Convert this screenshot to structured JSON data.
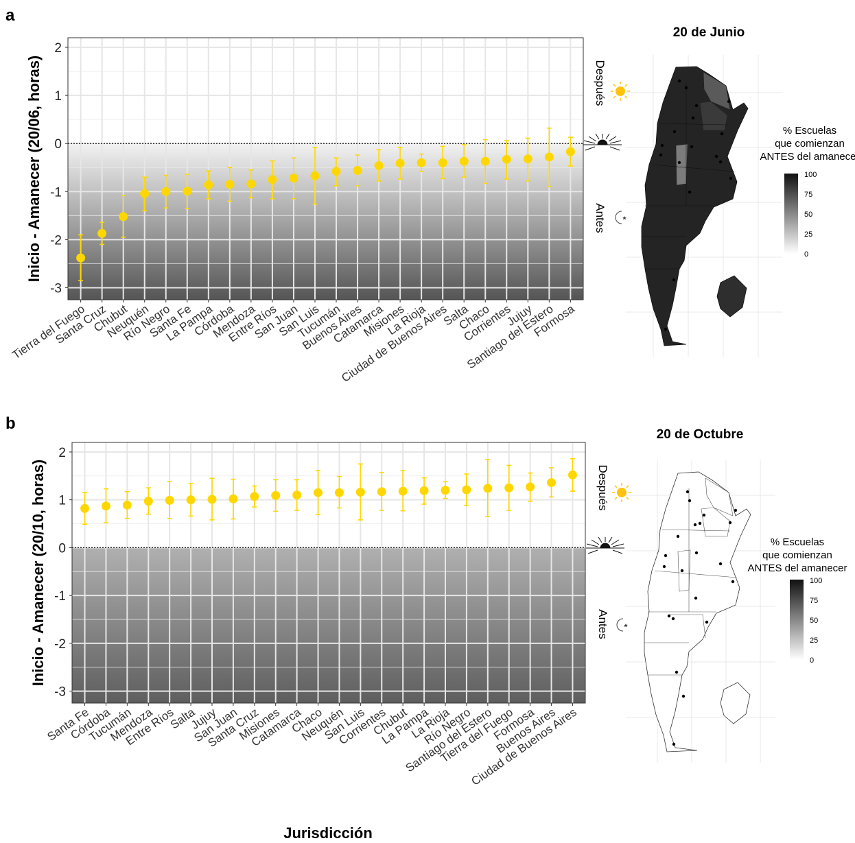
{
  "figure": {
    "xlabel": "Jurisdicción"
  },
  "panels": [
    {
      "letter": "a",
      "map_title": "20 de Junio",
      "legend_title": [
        "% Escuelas",
        "que comienzan",
        "ANTES del amanecer"
      ],
      "legend_ticks": [
        "100",
        "75",
        "50",
        "25",
        "0"
      ],
      "side_after": "Después",
      "side_before": "Antes"
    },
    {
      "letter": "b",
      "map_title": "20 de Octubre",
      "legend_title": [
        "% Escuelas",
        "que comienzan",
        "ANTES del amanecer"
      ],
      "legend_ticks": [
        "100",
        "75",
        "50",
        "25",
        "0"
      ],
      "side_after": "Después",
      "side_before": "Antes"
    }
  ],
  "chart_data": [
    {
      "type": "scatter",
      "title": "",
      "xlabel": "",
      "ylabel": "Inicio - Amanecer (20/06, horas)",
      "ylim": [
        -3.25,
        2.2
      ],
      "yticks": [
        -3,
        -2,
        -1,
        0,
        1,
        2
      ],
      "reference_line": 0,
      "point_color": "#FFD700",
      "categories": [
        "Tierra del Fuego",
        "Santa Cruz",
        "Chubut",
        "Neuquén",
        "Río Negro",
        "Santa Fe",
        "La Pampa",
        "Córdoba",
        "Mendoza",
        "Entre Ríos",
        "San Juan",
        "San Luis",
        "Tucumán",
        "Buenos Aires",
        "Catamarca",
        "Misiones",
        "La Rioja",
        "Ciudad de Buenos Aires",
        "Salta",
        "Chaco",
        "Corrientes",
        "Jujuy",
        "Santiago del Estero",
        "Formosa"
      ],
      "values": [
        -2.38,
        -1.87,
        -1.52,
        -1.04,
        -1.0,
        -0.99,
        -0.86,
        -0.85,
        -0.84,
        -0.75,
        -0.72,
        -0.67,
        -0.58,
        -0.56,
        -0.46,
        -0.41,
        -0.4,
        -0.4,
        -0.37,
        -0.37,
        -0.33,
        -0.32,
        -0.28,
        -0.17
      ],
      "err_low": [
        -2.85,
        -2.1,
        -1.95,
        -1.4,
        -1.34,
        -1.35,
        -1.15,
        -1.2,
        -1.13,
        -1.15,
        -1.15,
        -1.26,
        -0.88,
        -0.88,
        -0.78,
        -0.74,
        -0.58,
        -0.73,
        -0.7,
        -0.83,
        -0.74,
        -0.78,
        -0.9,
        -0.47
      ],
      "err_high": [
        -1.9,
        -1.64,
        -1.08,
        -0.7,
        -0.66,
        -0.64,
        -0.57,
        -0.5,
        -0.55,
        -0.36,
        -0.3,
        -0.08,
        -0.3,
        -0.24,
        -0.13,
        -0.08,
        -0.22,
        -0.06,
        -0.02,
        0.08,
        0.06,
        0.11,
        0.32,
        0.13
      ]
    },
    {
      "type": "scatter",
      "title": "",
      "xlabel": "Jurisdicción",
      "ylabel": "Inicio - Amanecer (20/10, horas)",
      "ylim": [
        -3.25,
        2.2
      ],
      "yticks": [
        -3,
        -2,
        -1,
        0,
        1,
        2
      ],
      "reference_line": 0,
      "point_color": "#FFD700",
      "categories": [
        "Santa Fe",
        "Córdoba",
        "Tucumán",
        "Mendoza",
        "Entre Ríos",
        "Salta",
        "Jujuy",
        "San Juan",
        "Santa Cruz",
        "Misiones",
        "Catamarca",
        "Chaco",
        "Neuquén",
        "San Luis",
        "Corrientes",
        "Chubut",
        "La Pampa",
        "La Rioja",
        "Río Negro",
        "Santiago del Estero",
        "Tierra del Fuego",
        "Formosa",
        "Buenos Aires",
        "Ciudad de Buenos Aires"
      ],
      "values": [
        0.82,
        0.87,
        0.89,
        0.97,
        0.99,
        1.0,
        1.01,
        1.02,
        1.07,
        1.09,
        1.1,
        1.15,
        1.15,
        1.16,
        1.17,
        1.18,
        1.19,
        1.2,
        1.21,
        1.24,
        1.25,
        1.27,
        1.36,
        1.52
      ],
      "err_low": [
        0.49,
        0.52,
        0.61,
        0.7,
        0.61,
        0.66,
        0.58,
        0.6,
        0.85,
        0.76,
        0.78,
        0.69,
        0.83,
        0.58,
        0.78,
        0.77,
        0.91,
        1.03,
        0.88,
        0.65,
        0.78,
        0.97,
        1.06,
        1.18
      ],
      "err_high": [
        1.15,
        1.23,
        1.17,
        1.25,
        1.38,
        1.34,
        1.45,
        1.43,
        1.29,
        1.42,
        1.42,
        1.61,
        1.49,
        1.75,
        1.57,
        1.61,
        1.46,
        1.38,
        1.54,
        1.84,
        1.72,
        1.56,
        1.67,
        1.86
      ]
    }
  ]
}
